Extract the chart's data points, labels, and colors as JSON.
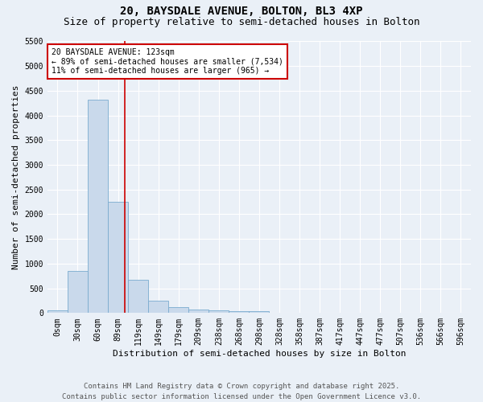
{
  "title_line1": "20, BAYSDALE AVENUE, BOLTON, BL3 4XP",
  "title_line2": "Size of property relative to semi-detached houses in Bolton",
  "xlabel": "Distribution of semi-detached houses by size in Bolton",
  "ylabel": "Number of semi-detached properties",
  "bin_labels": [
    "0sqm",
    "30sqm",
    "60sqm",
    "89sqm",
    "119sqm",
    "149sqm",
    "179sqm",
    "209sqm",
    "238sqm",
    "268sqm",
    "298sqm",
    "328sqm",
    "358sqm",
    "387sqm",
    "417sqm",
    "447sqm",
    "477sqm",
    "507sqm",
    "536sqm",
    "566sqm",
    "596sqm"
  ],
  "bar_heights": [
    50,
    850,
    4320,
    2250,
    680,
    255,
    120,
    70,
    60,
    45,
    30,
    0,
    0,
    0,
    0,
    0,
    0,
    0,
    0,
    0,
    0
  ],
  "bar_color": "#c9d9eb",
  "bar_edge_color": "#7aabcf",
  "property_line_x": 3.83,
  "annotation_title": "20 BAYSDALE AVENUE: 123sqm",
  "annotation_line1": "← 89% of semi-detached houses are smaller (7,534)",
  "annotation_line2": "11% of semi-detached houses are larger (965) →",
  "annotation_box_color": "#ffffff",
  "annotation_box_edge": "#cc0000",
  "vline_color": "#cc0000",
  "ylim": [
    0,
    5500
  ],
  "yticks": [
    0,
    500,
    1000,
    1500,
    2000,
    2500,
    3000,
    3500,
    4000,
    4500,
    5000,
    5500
  ],
  "footer_line1": "Contains HM Land Registry data © Crown copyright and database right 2025.",
  "footer_line2": "Contains public sector information licensed under the Open Government Licence v3.0.",
  "bg_color": "#eaf0f7",
  "plot_bg_color": "#eaf0f7",
  "grid_color": "#ffffff",
  "title_fontsize": 10,
  "subtitle_fontsize": 9,
  "axis_label_fontsize": 8,
  "tick_fontsize": 7,
  "annotation_fontsize": 7,
  "footer_fontsize": 6.5
}
